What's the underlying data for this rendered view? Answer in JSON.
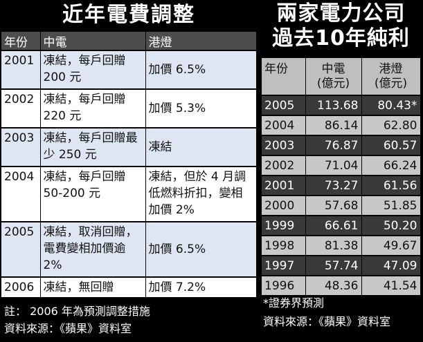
{
  "left": {
    "title": "近年電費調整",
    "headers": [
      "年份",
      "中電",
      "港燈"
    ],
    "rows": [
      {
        "year": "2001",
        "clp": "凍結，每戶回贈 200 元",
        "hk": "加價 6.5%"
      },
      {
        "year": "2002",
        "clp": "凍結，每戶回贈 220 元",
        "hk": "加價 5.3%"
      },
      {
        "year": "2003",
        "clp": "凍結，每戶回贈最少 250 元",
        "hk": "凍結"
      },
      {
        "year": "2004",
        "clp": "凍結，每戶回贈 50-200 元",
        "hk": "凍結，但於 4 月調低燃料折扣，變相加價 2%"
      },
      {
        "year": "2005",
        "clp": "凍結，取消回贈，電費變相加價逾 2%",
        "hk": "加價 6.5%"
      },
      {
        "year": "2006",
        "clp": "凍結，無回贈",
        "hk": "加價 7.2%"
      }
    ],
    "note": "註： 2006 年為預測調整措施",
    "source": "資料來源：《蘋果》資料室"
  },
  "right": {
    "title_line1": "兩家電力公司",
    "title_line2": "過去10年純利",
    "headers": {
      "year": "年份",
      "clp": "中電\n(億元)",
      "hk": "港燈\n(億元)"
    },
    "rows": [
      {
        "year": "2005",
        "clp": "113.68",
        "hk": "80.43*"
      },
      {
        "year": "2004",
        "clp": "86.14",
        "hk": "62.80"
      },
      {
        "year": "2003",
        "clp": "76.87",
        "hk": "60.57"
      },
      {
        "year": "2002",
        "clp": "71.04",
        "hk": "66.24"
      },
      {
        "year": "2001",
        "clp": "73.27",
        "hk": "61.56"
      },
      {
        "year": "2000",
        "clp": "57.68",
        "hk": "51.85"
      },
      {
        "year": "1999",
        "clp": "66.61",
        "hk": "50.20"
      },
      {
        "year": "1998",
        "clp": "81.38",
        "hk": "49.67"
      },
      {
        "year": "1997",
        "clp": "57.74",
        "hk": "47.09"
      },
      {
        "year": "1996",
        "clp": "48.36",
        "hk": "41.54"
      }
    ],
    "note": "*證券界預測",
    "source": "資料來源：《蘋果》資料室"
  },
  "colors": {
    "light_row": "#dde6f2",
    "header_dark": "#4d4d4d",
    "right_dark": "#3a3a3a",
    "right_light": "#c8c8c8"
  }
}
